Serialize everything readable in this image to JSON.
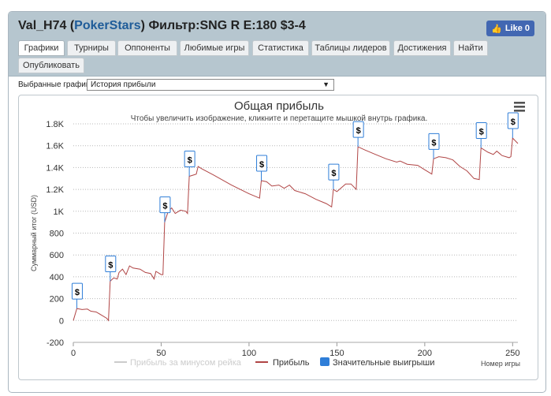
{
  "header": {
    "player": "Val_H74",
    "site": "PokerStars",
    "filter": "Фильтр:SNG R E:180 $3-4",
    "like_label": "Like 0",
    "like_icon": "thumbs-up-icon"
  },
  "tabs": [
    {
      "label": "Графики",
      "active": true
    },
    {
      "label": "Турниры",
      "active": false
    },
    {
      "label": "Оппоненты",
      "active": false
    },
    {
      "label": "Любимые игры",
      "active": false
    },
    {
      "label": "Статистика",
      "active": false
    },
    {
      "label": "Таблицы лидеров",
      "active": false
    },
    {
      "label": "Достижения",
      "active": false
    },
    {
      "label": "Найти",
      "active": false
    },
    {
      "label": "Опубликовать",
      "active": false
    }
  ],
  "selector": {
    "label": "Выбранные графики:",
    "value": "История прибыли"
  },
  "chart_data": {
    "type": "line",
    "title": "Общая прибыль",
    "subtitle": "Чтобы увеличить изображение, кликните и перетащите мышкой внутрь графика.",
    "xlabel": "Номер игры",
    "ylabel": "Суммарный итог (USD)",
    "xlim": [
      0,
      253
    ],
    "ylim": [
      -200,
      1800
    ],
    "x_ticks": [
      0,
      50,
      100,
      150,
      200,
      250
    ],
    "y_ticks": [
      {
        "v": -200,
        "label": "-200"
      },
      {
        "v": 0,
        "label": "0"
      },
      {
        "v": 200,
        "label": "200"
      },
      {
        "v": 400,
        "label": "400"
      },
      {
        "v": 600,
        "label": "600"
      },
      {
        "v": 800,
        "label": "800"
      },
      {
        "v": 1000,
        "label": "1K"
      },
      {
        "v": 1200,
        "label": "1.2K"
      },
      {
        "v": 1400,
        "label": "1.4K"
      },
      {
        "v": 1600,
        "label": "1.6K"
      },
      {
        "v": 1800,
        "label": "1.8K"
      }
    ],
    "grid": true,
    "legend_position": "bottom",
    "legend": [
      {
        "name": "Прибыль за минусом рейка",
        "color": "#cccccc",
        "kind": "line",
        "hidden": true
      },
      {
        "name": "Прибыль",
        "color": "#b04545",
        "kind": "line",
        "hidden": false
      },
      {
        "name": "Значительные выигрыши",
        "color": "#2f7ed8",
        "kind": "box",
        "hidden": false
      }
    ],
    "menu_icon": "hamburger-menu-icon",
    "series": [
      {
        "name": "Прибыль",
        "color": "#b04545",
        "points": [
          [
            0,
            0
          ],
          [
            2,
            110
          ],
          [
            5,
            100
          ],
          [
            8,
            105
          ],
          [
            10,
            85
          ],
          [
            13,
            78
          ],
          [
            16,
            50
          ],
          [
            19,
            20
          ],
          [
            20,
            0
          ],
          [
            21,
            360
          ],
          [
            23,
            390
          ],
          [
            25,
            380
          ],
          [
            26,
            440
          ],
          [
            28,
            470
          ],
          [
            30,
            420
          ],
          [
            32,
            500
          ],
          [
            34,
            480
          ],
          [
            38,
            470
          ],
          [
            41,
            440
          ],
          [
            44,
            430
          ],
          [
            46,
            380
          ],
          [
            47,
            450
          ],
          [
            50,
            420
          ],
          [
            51,
            420
          ],
          [
            52,
            900
          ],
          [
            54,
            1000
          ],
          [
            56,
            1030
          ],
          [
            58,
            980
          ],
          [
            61,
            1010
          ],
          [
            64,
            1000
          ],
          [
            65,
            980
          ],
          [
            66,
            1320
          ],
          [
            68,
            1330
          ],
          [
            70,
            1340
          ],
          [
            71,
            1410
          ],
          [
            73,
            1390
          ],
          [
            80,
            1330
          ],
          [
            90,
            1240
          ],
          [
            100,
            1160
          ],
          [
            106,
            1120
          ],
          [
            107,
            1280
          ],
          [
            110,
            1270
          ],
          [
            113,
            1230
          ],
          [
            117,
            1240
          ],
          [
            120,
            1210
          ],
          [
            123,
            1240
          ],
          [
            126,
            1190
          ],
          [
            132,
            1160
          ],
          [
            138,
            1110
          ],
          [
            144,
            1070
          ],
          [
            147,
            1040
          ],
          [
            148,
            1200
          ],
          [
            150,
            1180
          ],
          [
            155,
            1250
          ],
          [
            158,
            1250
          ],
          [
            161,
            1200
          ],
          [
            162,
            1590
          ],
          [
            166,
            1560
          ],
          [
            172,
            1520
          ],
          [
            178,
            1480
          ],
          [
            184,
            1450
          ],
          [
            186,
            1460
          ],
          [
            190,
            1430
          ],
          [
            196,
            1420
          ],
          [
            200,
            1380
          ],
          [
            204,
            1340
          ],
          [
            205,
            1480
          ],
          [
            208,
            1500
          ],
          [
            212,
            1490
          ],
          [
            216,
            1470
          ],
          [
            220,
            1410
          ],
          [
            224,
            1370
          ],
          [
            228,
            1300
          ],
          [
            231,
            1290
          ],
          [
            232,
            1580
          ],
          [
            236,
            1540
          ],
          [
            239,
            1520
          ],
          [
            241,
            1550
          ],
          [
            244,
            1510
          ],
          [
            248,
            1490
          ],
          [
            249,
            1500
          ],
          [
            250,
            1670
          ],
          [
            253,
            1620
          ]
        ]
      }
    ],
    "significant_wins": [
      {
        "x": 2,
        "y": 110,
        "label": "$"
      },
      {
        "x": 21,
        "y": 360,
        "label": "$"
      },
      {
        "x": 52,
        "y": 900,
        "label": "$"
      },
      {
        "x": 66,
        "y": 1320,
        "label": "$"
      },
      {
        "x": 107,
        "y": 1280,
        "label": "$"
      },
      {
        "x": 148,
        "y": 1200,
        "label": "$"
      },
      {
        "x": 162,
        "y": 1590,
        "label": "$"
      },
      {
        "x": 205,
        "y": 1480,
        "label": "$"
      },
      {
        "x": 232,
        "y": 1580,
        "label": "$"
      },
      {
        "x": 250,
        "y": 1670,
        "label": "$"
      }
    ]
  }
}
